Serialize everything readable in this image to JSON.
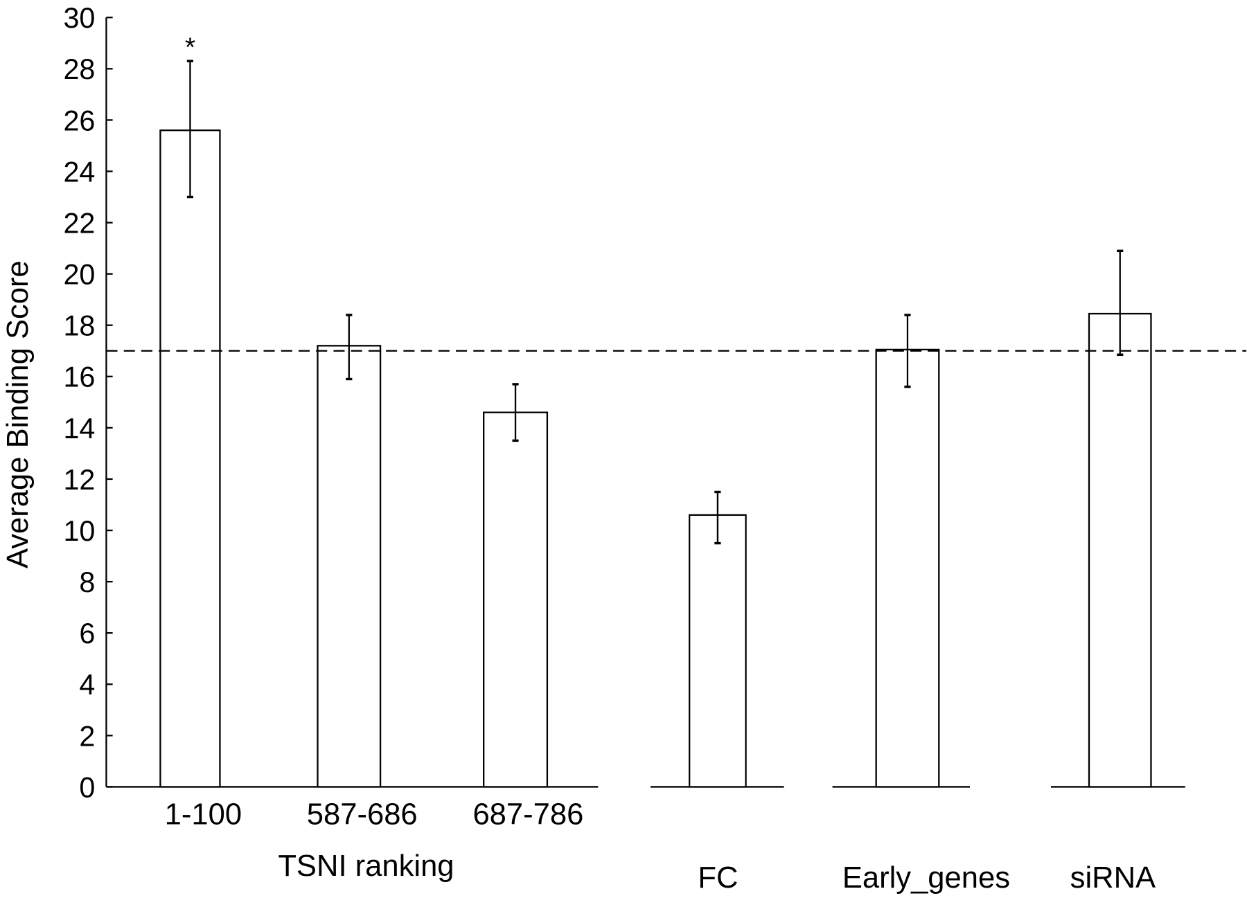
{
  "chart_data": {
    "type": "bar",
    "ylabel": "Average Binding Score",
    "ylim": [
      0,
      30
    ],
    "yticks": [
      0,
      2,
      4,
      6,
      8,
      10,
      12,
      14,
      16,
      18,
      20,
      22,
      24,
      26,
      28,
      30
    ],
    "grid": false,
    "categories": [
      "1-100",
      "587-686",
      "687-786",
      "FC",
      "Early_genes",
      "siRNA"
    ],
    "values": [
      25.6,
      17.2,
      14.6,
      10.6,
      17.05,
      18.45
    ],
    "error_upper": [
      28.3,
      18.4,
      15.7,
      11.5,
      18.4,
      20.9
    ],
    "error_lower": [
      23.0,
      15.9,
      13.5,
      9.5,
      15.6,
      16.85
    ],
    "group_label": "TSNI ranking",
    "annotations": [
      {
        "category": "1-100",
        "text": "*"
      }
    ],
    "reference_line": {
      "value": 17.0,
      "style": "dashed"
    },
    "bar_fill": "#ffffff",
    "bar_stroke": "#000000"
  }
}
